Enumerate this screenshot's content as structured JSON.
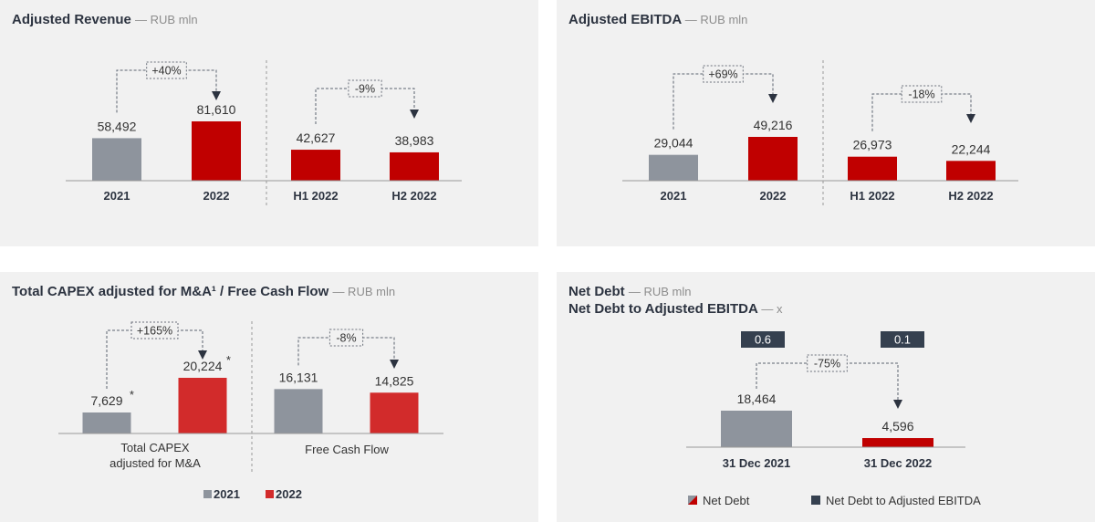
{
  "colors": {
    "gray_bar": "#8e949d",
    "red_bar": "#c00000",
    "red_bar_light": "#d22b2b",
    "ratio_box": "#35404f",
    "panel_bg": "#f1f1f1"
  },
  "chart_data": [
    {
      "type": "bar",
      "title": "Adjusted Revenue",
      "unit": "— RUB mln",
      "categories": [
        "2021",
        "2022",
        "H1 2022",
        "H2 2022"
      ],
      "value_labels": [
        "58,492",
        "81,610",
        "42,627",
        "38,983"
      ],
      "values": [
        58492,
        81610,
        42627,
        38983
      ],
      "changes": [
        "+40%",
        "-9%"
      ]
    },
    {
      "type": "bar",
      "title": "Adjusted EBITDA",
      "unit": "— RUB mln",
      "categories": [
        "2021",
        "2022",
        "H1 2022",
        "H2 2022"
      ],
      "value_labels": [
        "29,044",
        "49,216",
        "26,973",
        "22,244"
      ],
      "values": [
        29044,
        49216,
        26973,
        22244
      ],
      "changes": [
        "+69%",
        "-18%"
      ]
    },
    {
      "type": "bar",
      "title": "Total CAPEX adjusted for M&A¹ / Free Cash Flow",
      "unit": "— RUB mln",
      "groups": [
        "Total CAPEX",
        "adjusted for M&A",
        "Free Cash Flow"
      ],
      "value_labels": [
        "7,629",
        "20,224",
        "16,131",
        "14,825"
      ],
      "values": [
        7629,
        20224,
        16131,
        14825
      ],
      "asterisk": "*",
      "changes": [
        "+165%",
        "-8%"
      ],
      "legend": [
        "2021",
        "2022"
      ]
    },
    {
      "type": "bar",
      "title": "Net Debt",
      "unit": "— RUB mln",
      "title2": "Net Debt to Adjusted EBITDA",
      "unit2": "— x",
      "categories": [
        "31 Dec 2021",
        "31 Dec 2022"
      ],
      "value_labels": [
        "18,464",
        "4,596"
      ],
      "values": [
        18464,
        4596
      ],
      "ratio_labels": [
        "0.6",
        "0.1"
      ],
      "changes": [
        "-75%"
      ],
      "legend": [
        "Net Debt",
        "Net Debt to Adjusted EBITDA"
      ]
    }
  ]
}
